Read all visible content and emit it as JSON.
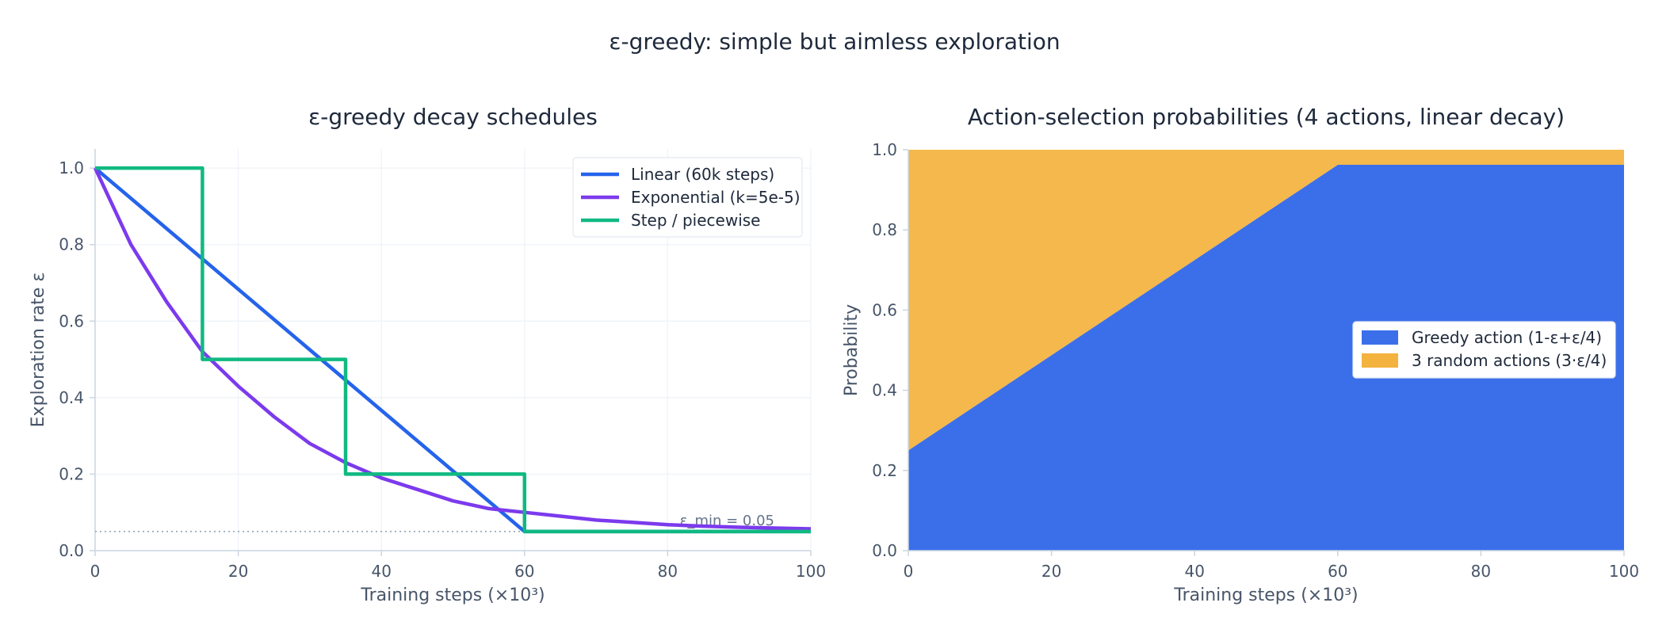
{
  "suptitle": "ε-greedy: simple but aimless exploration",
  "colors": {
    "text": "#1e293b",
    "axis_text": "#475569",
    "spine": "#cbd5e1",
    "grid": "#eef2f7",
    "linear": "#2563eb",
    "exponential": "#7c3aed",
    "step": "#10b981",
    "greedy_fill": "#3b6fea",
    "random_fill": "#f4b23e",
    "eps_min_line": "#94a3b8"
  },
  "chart_data": [
    {
      "type": "line",
      "title": "ε-greedy decay schedules",
      "xlabel": "Training steps (×10³)",
      "ylabel": "Exploration rate ε",
      "xlim": [
        0,
        100
      ],
      "ylim": [
        0,
        1.05
      ],
      "xticks": [
        "0",
        "20",
        "40",
        "60",
        "80",
        "100"
      ],
      "yticks": [
        "0.0",
        "0.2",
        "0.4",
        "0.6",
        "0.8",
        "1.0"
      ],
      "grid": true,
      "legend_position": "top-right",
      "series": [
        {
          "name": "Linear (60k steps)",
          "color_key": "linear",
          "x": [
            0,
            60,
            100
          ],
          "y": [
            1.0,
            0.05,
            0.05
          ]
        },
        {
          "name": "Exponential (k=5e-5)",
          "color_key": "exponential",
          "x": [
            0,
            5,
            10,
            15,
            20,
            25,
            30,
            35,
            40,
            45,
            50,
            55,
            60,
            65,
            70,
            75,
            80,
            85,
            90,
            95,
            100
          ],
          "y": [
            1.0,
            0.8,
            0.65,
            0.52,
            0.43,
            0.35,
            0.28,
            0.23,
            0.19,
            0.16,
            0.13,
            0.11,
            0.1,
            0.09,
            0.08,
            0.074,
            0.068,
            0.064,
            0.061,
            0.059,
            0.057
          ]
        },
        {
          "name": "Step / piecewise",
          "color_key": "step",
          "x": [
            0,
            15,
            15,
            35,
            35,
            60,
            60,
            100
          ],
          "y": [
            1.0,
            1.0,
            0.5,
            0.5,
            0.2,
            0.2,
            0.05,
            0.05
          ]
        }
      ],
      "reference_line": {
        "y": 0.05,
        "label": "ε_min = 0.05"
      }
    },
    {
      "type": "area",
      "title": "Action-selection probabilities (4 actions, linear decay)",
      "xlabel": "Training steps (×10³)",
      "ylabel": "Probability",
      "xlim": [
        0,
        100
      ],
      "ylim": [
        0,
        1.0
      ],
      "xticks": [
        "0",
        "20",
        "40",
        "60",
        "80",
        "100"
      ],
      "yticks": [
        "0.0",
        "0.2",
        "0.4",
        "0.6",
        "0.8",
        "1.0"
      ],
      "stacked": true,
      "legend_position": "center-right",
      "x": [
        0,
        60,
        100
      ],
      "series": [
        {
          "name": "Greedy action  (1-ε+ε/4)",
          "color_key": "greedy_fill",
          "values": [
            0.25,
            0.9625,
            0.9625
          ]
        },
        {
          "name": "3 random actions  (3·ε/4)",
          "color_key": "random_fill",
          "values": [
            0.75,
            0.0375,
            0.0375
          ]
        }
      ]
    }
  ]
}
